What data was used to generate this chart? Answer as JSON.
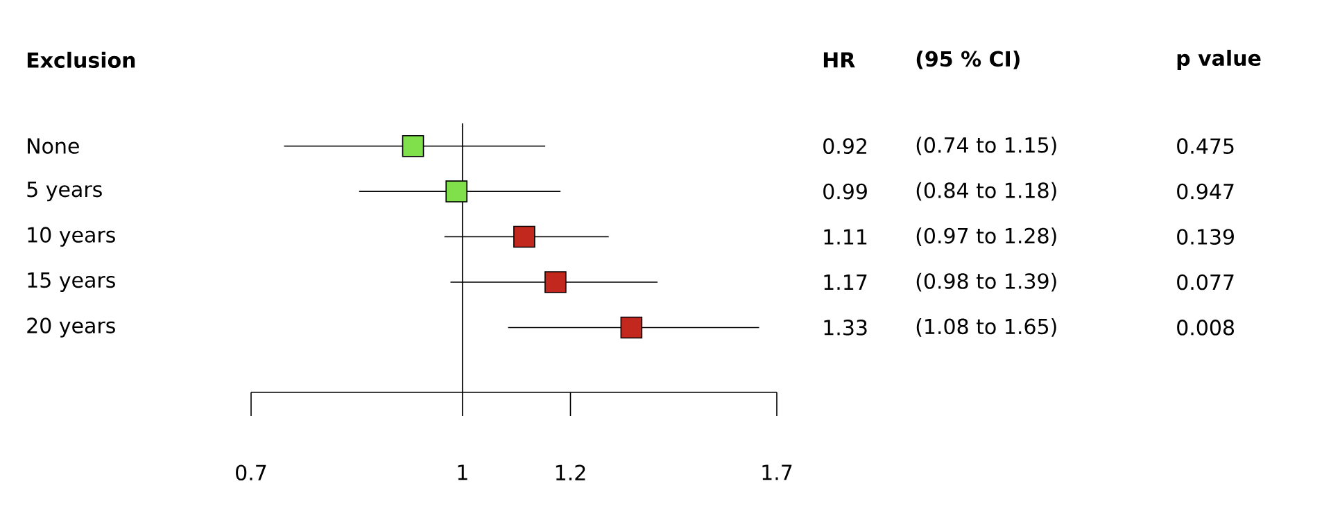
{
  "chart_data": {
    "type": "scatter",
    "orientation": "horizontal",
    "ylabel": "Exclusion",
    "categories": [
      "None",
      "5 years",
      "10 years",
      "15 years",
      "20 years"
    ],
    "values": [
      0.92,
      0.99,
      1.11,
      1.17,
      1.33
    ],
    "errors": [
      [
        0.74,
        1.15
      ],
      [
        0.84,
        1.18
      ],
      [
        0.97,
        1.28
      ],
      [
        0.98,
        1.39
      ],
      [
        1.08,
        1.65
      ]
    ],
    "colors": [
      "#7fe04c",
      "#7fe04c",
      "#c3281e",
      "#c3281e",
      "#c3281e"
    ],
    "value_labels": [
      "0.92",
      "0.99",
      "1.11",
      "1.17",
      "1.33"
    ],
    "annotations": [
      "HR",
      "(95 % CI)",
      "p value",
      "(0.74 to 1.15)",
      "0.475",
      "(0.84 to 1.18)",
      "0.947",
      "(0.97 to 1.28)",
      "0.139",
      "(0.98 to 1.39)",
      "0.077",
      "(1.08 to 1.65)",
      "0.008"
    ],
    "xlim": [
      0.7,
      1.7
    ],
    "xticks": [
      0.7,
      1,
      1.2,
      1.7
    ],
    "ref_lines": [
      {
        "axis": "x",
        "value": 1
      }
    ],
    "log": "x",
    "marker": "square",
    "grid": false
  }
}
